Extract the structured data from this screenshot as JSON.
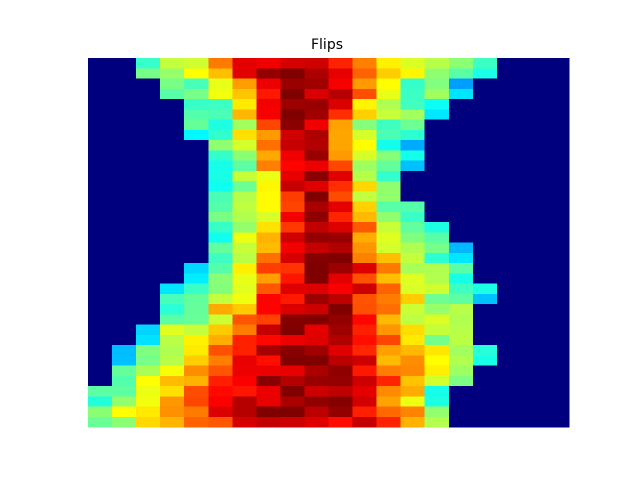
{
  "chart_data": {
    "type": "heatmap",
    "title": "Flips",
    "xlabel": "",
    "ylabel": "",
    "axes_visible": false,
    "grid": false,
    "legend": "none",
    "colormap": "jet",
    "value_range": [
      0,
      1
    ],
    "n_columns": 20,
    "row_profile": [
      {
        "row": 0,
        "rows": 2,
        "left_edge": 2.0,
        "right_edge": 16.9,
        "peak": 8.8,
        "width": 4.3
      },
      {
        "row": 2,
        "rows": 2,
        "left_edge": 3.0,
        "right_edge": 15.5,
        "peak": 9.0,
        "width": 3.2
      },
      {
        "row": 4,
        "rows": 2,
        "left_edge": 3.8,
        "right_edge": 14.5,
        "peak": 9.1,
        "width": 2.6
      },
      {
        "row": 6,
        "rows": 2,
        "left_edge": 4.0,
        "right_edge": 13.9,
        "peak": 9.0,
        "width": 2.2
      },
      {
        "row": 8,
        "rows": 3,
        "left_edge": 4.7,
        "right_edge": 13.5,
        "peak": 9.2,
        "width": 2.0
      },
      {
        "row": 11,
        "rows": 3,
        "left_edge": 5.0,
        "right_edge": 13.4,
        "peak": 9.4,
        "width": 2.0
      },
      {
        "row": 14,
        "rows": 2,
        "left_edge": 4.9,
        "right_edge": 14.2,
        "peak": 9.6,
        "width": 2.1
      },
      {
        "row": 16,
        "rows": 2,
        "left_edge": 4.8,
        "right_edge": 14.9,
        "peak": 9.6,
        "width": 2.4
      },
      {
        "row": 18,
        "rows": 2,
        "left_edge": 4.8,
        "right_edge": 15.6,
        "peak": 9.7,
        "width": 2.8
      },
      {
        "row": 20,
        "rows": 2,
        "left_edge": 4.3,
        "right_edge": 16.2,
        "peak": 9.8,
        "width": 3.2
      },
      {
        "row": 22,
        "rows": 2,
        "left_edge": 3.3,
        "right_edge": 16.6,
        "peak": 9.8,
        "width": 3.6
      },
      {
        "row": 24,
        "rows": 2,
        "left_edge": 3.0,
        "right_edge": 16.4,
        "peak": 9.5,
        "width": 4.0
      },
      {
        "row": 26,
        "rows": 2,
        "left_edge": 2.4,
        "right_edge": 16.3,
        "peak": 9.2,
        "width": 4.4
      },
      {
        "row": 28,
        "rows": 2,
        "left_edge": 1.4,
        "right_edge": 17.0,
        "peak": 9.0,
        "width": 4.8
      },
      {
        "row": 30,
        "rows": 2,
        "left_edge": 0.8,
        "right_edge": 16.3,
        "peak": 8.8,
        "width": 5.2
      },
      {
        "row": 32,
        "rows": 2,
        "left_edge": 0.0,
        "right_edge": 14.6,
        "peak": 8.6,
        "width": 5.6
      },
      {
        "row": 34,
        "rows": 2,
        "left_edge": -0.5,
        "right_edge": 15.2,
        "peak": 8.5,
        "width": 6.2
      }
    ]
  }
}
